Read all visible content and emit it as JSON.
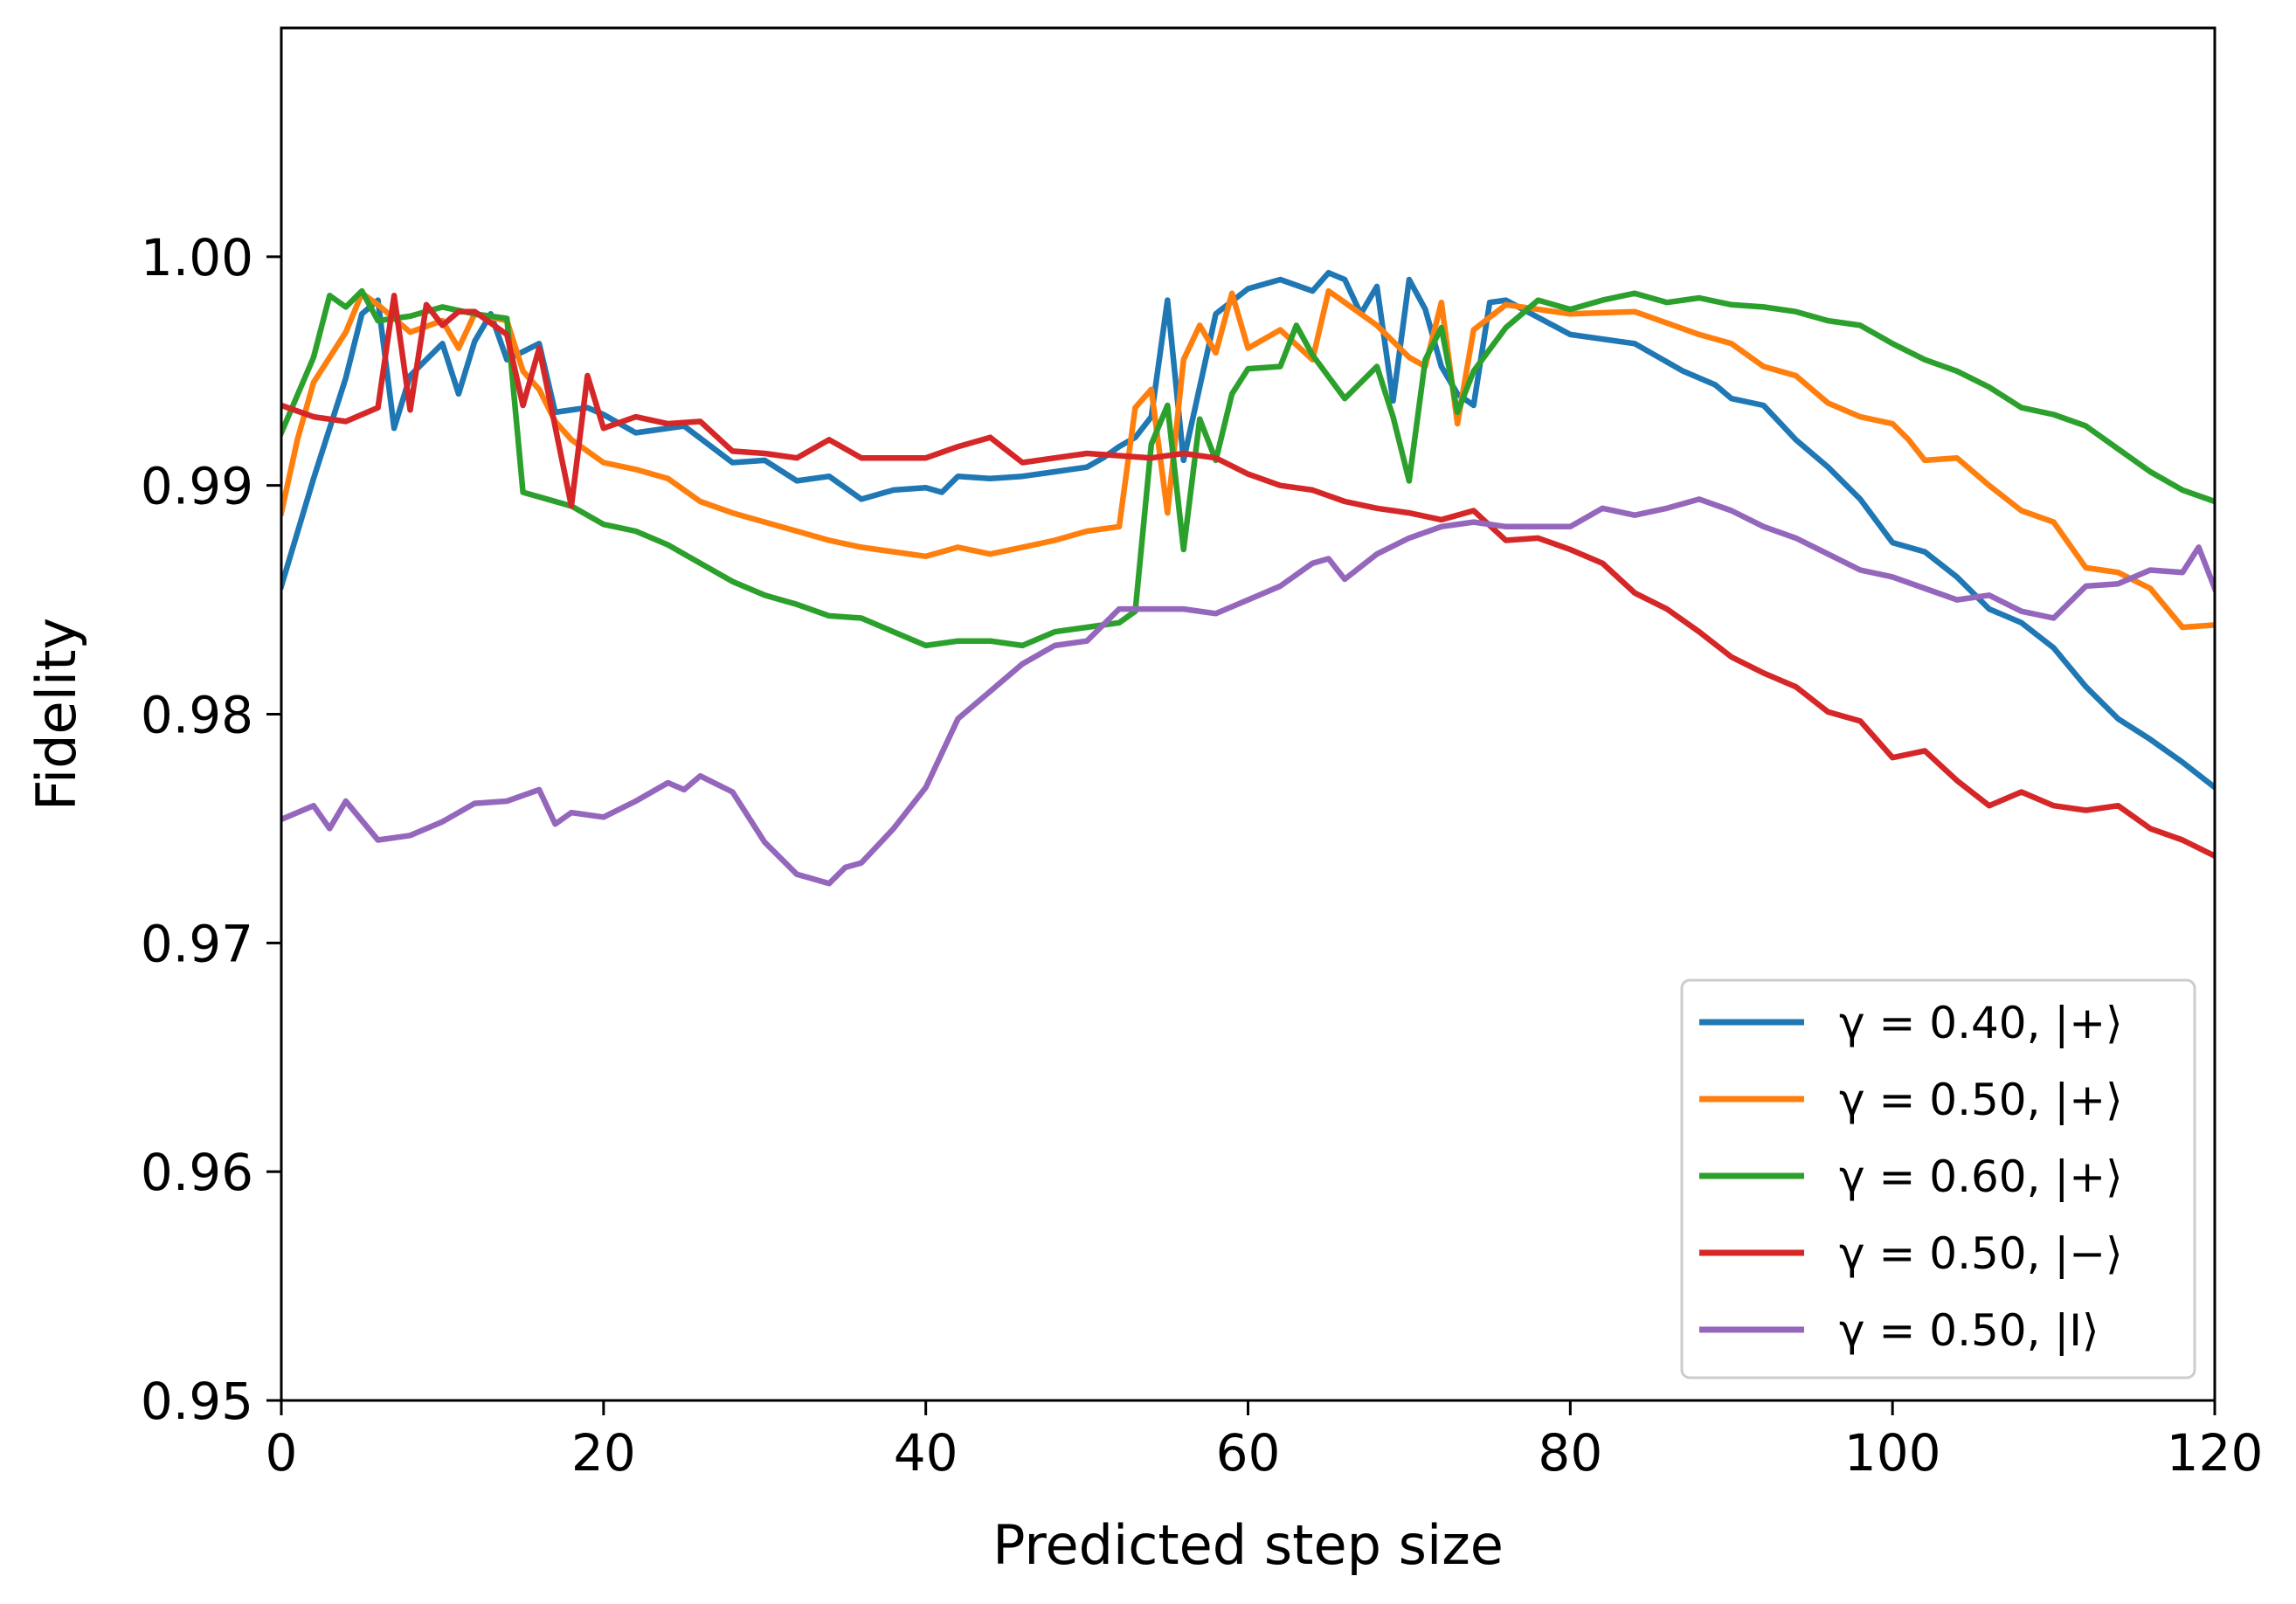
{
  "chart_data": {
    "type": "line",
    "title": "",
    "xlabel": "Predicted step size",
    "ylabel": "Fidelity",
    "xlim": [
      0,
      120
    ],
    "ylim": [
      0.95,
      1.01
    ],
    "xticks": [
      0,
      20,
      40,
      60,
      80,
      100,
      120
    ],
    "xtick_labels": [
      "0",
      "20",
      "40",
      "60",
      "80",
      "100",
      "120"
    ],
    "yticks": [
      0.95,
      0.96,
      0.97,
      0.98,
      0.99,
      1.0
    ],
    "ytick_labels": [
      "0.95",
      "0.96",
      "0.97",
      "0.98",
      "0.99",
      "1.00"
    ],
    "grid": false,
    "legend_position": "lower-right",
    "series": [
      {
        "name": "γ = 0.40, |+⟩",
        "color": "#1f77b4",
        "x": [
          0,
          2,
          4,
          5,
          6,
          7,
          8,
          10,
          11,
          12,
          13,
          14,
          16,
          17,
          19,
          20,
          22,
          25,
          28,
          30,
          32,
          34,
          36,
          38,
          40,
          41,
          42,
          44,
          46,
          48,
          50,
          51,
          52,
          53,
          54,
          55,
          56,
          58,
          60,
          62,
          64,
          65,
          66,
          67,
          68,
          69,
          70,
          71,
          72,
          73,
          74,
          75,
          76,
          80,
          84,
          87,
          89,
          90,
          92,
          94,
          96,
          98,
          100,
          102,
          104,
          106,
          108,
          110,
          112,
          114,
          116,
          118,
          120
        ],
        "values": [
          0.9856,
          0.9903,
          0.9947,
          0.9975,
          0.9981,
          0.9925,
          0.9948,
          0.9962,
          0.994,
          0.9963,
          0.9975,
          0.9955,
          0.9962,
          0.9932,
          0.9934,
          0.9931,
          0.9923,
          0.9926,
          0.991,
          0.9911,
          0.9902,
          0.9904,
          0.9894,
          0.9898,
          0.9899,
          0.9897,
          0.9904,
          0.9903,
          0.9904,
          0.9906,
          0.9908,
          0.9912,
          0.9917,
          0.9921,
          0.993,
          0.9981,
          0.9911,
          0.9975,
          0.9986,
          0.999,
          0.9985,
          0.9993,
          0.999,
          0.9975,
          0.9987,
          0.9937,
          0.999,
          0.9977,
          0.9952,
          0.994,
          0.9935,
          0.998,
          0.9981,
          0.9966,
          0.9962,
          0.995,
          0.9944,
          0.9938,
          0.9935,
          0.992,
          0.9908,
          0.9894,
          0.9875,
          0.9871,
          0.986,
          0.9846,
          0.984,
          0.9829,
          0.9812,
          0.9798,
          0.9789,
          0.9779,
          0.9768
        ]
      },
      {
        "name": "γ = 0.50, |+⟩",
        "color": "#ff7f0e",
        "x": [
          0,
          1,
          2,
          4,
          5,
          6,
          8,
          10,
          11,
          12,
          14,
          15,
          16,
          17,
          18,
          20,
          22,
          24,
          26,
          28,
          30,
          32,
          34,
          36,
          38,
          40,
          42,
          44,
          46,
          48,
          50,
          52,
          53,
          54,
          55,
          56,
          57,
          58,
          59,
          60,
          62,
          64,
          65,
          66,
          68,
          70,
          71,
          72,
          73,
          74,
          76,
          80,
          84,
          88,
          90,
          92,
          94,
          96,
          98,
          100,
          101,
          102,
          104,
          106,
          108,
          110,
          112,
          114,
          116,
          118,
          120
        ],
        "values": [
          0.9888,
          0.992,
          0.9945,
          0.9967,
          0.9984,
          0.9979,
          0.9967,
          0.9972,
          0.996,
          0.9975,
          0.9972,
          0.995,
          0.9942,
          0.9928,
          0.992,
          0.991,
          0.9907,
          0.9903,
          0.9893,
          0.9888,
          0.9884,
          0.988,
          0.9876,
          0.9873,
          0.9871,
          0.9869,
          0.9873,
          0.987,
          0.9873,
          0.9876,
          0.988,
          0.9882,
          0.9934,
          0.9942,
          0.9888,
          0.9955,
          0.997,
          0.9958,
          0.9984,
          0.996,
          0.9968,
          0.9955,
          0.9985,
          0.998,
          0.997,
          0.9956,
          0.9952,
          0.998,
          0.9927,
          0.9968,
          0.9979,
          0.9975,
          0.9976,
          0.9966,
          0.9962,
          0.9952,
          0.9948,
          0.9936,
          0.993,
          0.9927,
          0.992,
          0.9911,
          0.9912,
          0.99,
          0.9889,
          0.9884,
          0.9864,
          0.9862,
          0.9855,
          0.9838,
          0.9839
        ]
      },
      {
        "name": "γ = 0.60, |+⟩",
        "color": "#2ca02c",
        "x": [
          0,
          2,
          3,
          4,
          5,
          6,
          8,
          10,
          12,
          14,
          15,
          16,
          18,
          20,
          22,
          24,
          26,
          28,
          30,
          32,
          34,
          36,
          38,
          40,
          42,
          44,
          46,
          48,
          50,
          52,
          53,
          54,
          55,
          56,
          57,
          58,
          59,
          60,
          62,
          63,
          64,
          66,
          68,
          69,
          70,
          71,
          72,
          73,
          74,
          76,
          78,
          80,
          82,
          84,
          86,
          88,
          90,
          92,
          94,
          96,
          98,
          100,
          102,
          104,
          106,
          108,
          110,
          112,
          114,
          116,
          118,
          120
        ],
        "values": [
          0.9923,
          0.9956,
          0.9983,
          0.9978,
          0.9985,
          0.9972,
          0.9974,
          0.9978,
          0.9975,
          0.9973,
          0.9897,
          0.9895,
          0.9891,
          0.9883,
          0.988,
          0.9874,
          0.9866,
          0.9858,
          0.9852,
          0.9848,
          0.9843,
          0.9842,
          0.9836,
          0.983,
          0.9832,
          0.9832,
          0.983,
          0.9836,
          0.9838,
          0.984,
          0.9845,
          0.9918,
          0.9935,
          0.9872,
          0.9929,
          0.9911,
          0.994,
          0.9951,
          0.9952,
          0.997,
          0.9957,
          0.9938,
          0.9952,
          0.993,
          0.9902,
          0.9955,
          0.9969,
          0.9932,
          0.995,
          0.9969,
          0.9981,
          0.9977,
          0.9981,
          0.9984,
          0.998,
          0.9982,
          0.9979,
          0.9978,
          0.9976,
          0.9972,
          0.997,
          0.9962,
          0.9955,
          0.995,
          0.9943,
          0.9934,
          0.9931,
          0.9926,
          0.9916,
          0.9906,
          0.9898,
          0.9893
        ]
      },
      {
        "name": "γ = 0.50, |−⟩",
        "color": "#d62728",
        "x": [
          0,
          2,
          4,
          6,
          7,
          8,
          9,
          10,
          11,
          12,
          14,
          15,
          16,
          18,
          19,
          20,
          22,
          24,
          26,
          28,
          30,
          32,
          34,
          36,
          38,
          40,
          42,
          44,
          46,
          48,
          50,
          52,
          54,
          56,
          58,
          60,
          62,
          64,
          66,
          68,
          70,
          72,
          74,
          76,
          78,
          80,
          82,
          84,
          86,
          88,
          90,
          92,
          94,
          96,
          98,
          100,
          102,
          104,
          106,
          108,
          110,
          112,
          114,
          116,
          118,
          120
        ],
        "values": [
          0.9935,
          0.993,
          0.9928,
          0.9934,
          0.9983,
          0.9933,
          0.9979,
          0.997,
          0.9976,
          0.9976,
          0.9966,
          0.9935,
          0.996,
          0.9891,
          0.9948,
          0.9925,
          0.993,
          0.9927,
          0.9928,
          0.9915,
          0.9914,
          0.9912,
          0.992,
          0.9912,
          0.9912,
          0.9912,
          0.9917,
          0.9921,
          0.991,
          0.9912,
          0.9914,
          0.9913,
          0.9912,
          0.9914,
          0.9912,
          0.9905,
          0.99,
          0.9898,
          0.9893,
          0.989,
          0.9888,
          0.9885,
          0.9889,
          0.9876,
          0.9877,
          0.9872,
          0.9866,
          0.9853,
          0.9846,
          0.9836,
          0.9825,
          0.9818,
          0.9812,
          0.9801,
          0.9797,
          0.9781,
          0.9784,
          0.9771,
          0.976,
          0.9766,
          0.976,
          0.9758,
          0.976,
          0.975,
          0.9745,
          0.9738
        ]
      },
      {
        "name": "γ = 0.50, |I⟩",
        "color": "#9467bd",
        "x": [
          0,
          2,
          3,
          4,
          6,
          8,
          10,
          12,
          14,
          16,
          17,
          18,
          20,
          22,
          24,
          25,
          26,
          28,
          30,
          32,
          34,
          35,
          36,
          38,
          40,
          42,
          44,
          46,
          48,
          50,
          52,
          54,
          56,
          58,
          60,
          62,
          64,
          65,
          66,
          68,
          70,
          72,
          74,
          76,
          78,
          80,
          82,
          84,
          86,
          88,
          90,
          92,
          94,
          96,
          98,
          100,
          102,
          104,
          106,
          108,
          110,
          112,
          114,
          116,
          118,
          119,
          120
        ],
        "values": [
          0.9754,
          0.976,
          0.975,
          0.9762,
          0.9745,
          0.9747,
          0.9753,
          0.9761,
          0.9762,
          0.9767,
          0.9752,
          0.9757,
          0.9755,
          0.9762,
          0.977,
          0.9767,
          0.9773,
          0.9766,
          0.9744,
          0.973,
          0.9726,
          0.9733,
          0.9735,
          0.975,
          0.9768,
          0.9798,
          0.981,
          0.9822,
          0.983,
          0.9832,
          0.9846,
          0.9846,
          0.9846,
          0.9844,
          0.985,
          0.9856,
          0.9866,
          0.9868,
          0.9859,
          0.987,
          0.9877,
          0.9882,
          0.9884,
          0.9882,
          0.9882,
          0.9882,
          0.989,
          0.9887,
          0.989,
          0.9894,
          0.9889,
          0.9882,
          0.9877,
          0.987,
          0.9863,
          0.986,
          0.9855,
          0.985,
          0.9852,
          0.9845,
          0.9842,
          0.9856,
          0.9857,
          0.9863,
          0.9862,
          0.9873,
          0.9855
        ]
      }
    ]
  }
}
